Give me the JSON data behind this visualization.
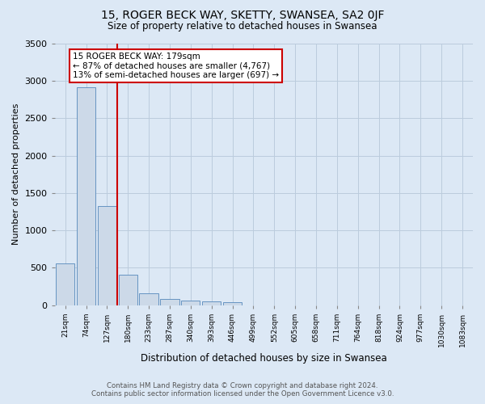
{
  "title": "15, ROGER BECK WAY, SKETTY, SWANSEA, SA2 0JF",
  "subtitle": "Size of property relative to detached houses in Swansea",
  "xlabel": "Distribution of detached houses by size in Swansea",
  "ylabel": "Number of detached properties",
  "footer_line1": "Contains HM Land Registry data © Crown copyright and database right 2024.",
  "footer_line2": "Contains public sector information licensed under the Open Government Licence v3.0.",
  "bar_color": "#ccd9e8",
  "bar_edge_color": "#5588bb",
  "grid_color": "#bbccdd",
  "background_color": "#dce8f5",
  "annotation_box_color": "#ffffff",
  "annotation_border_color": "#cc0000",
  "vline_color": "#cc0000",
  "categories": [
    "21sqm",
    "74sqm",
    "127sqm",
    "180sqm",
    "233sqm",
    "287sqm",
    "340sqm",
    "393sqm",
    "446sqm",
    "499sqm",
    "552sqm",
    "605sqm",
    "658sqm",
    "711sqm",
    "764sqm",
    "818sqm",
    "924sqm",
    "977sqm",
    "1030sqm",
    "1083sqm"
  ],
  "values": [
    560,
    2920,
    1330,
    410,
    160,
    80,
    55,
    45,
    40,
    0,
    0,
    0,
    0,
    0,
    0,
    0,
    0,
    0,
    0,
    0
  ],
  "property_label": "15 ROGER BECK WAY: 179sqm",
  "smaller_pct": "87%",
  "smaller_count": "4,767",
  "larger_pct": "13%",
  "larger_count": "697",
  "vline_index": 3,
  "ylim": [
    0,
    3500
  ],
  "yticks": [
    0,
    500,
    1000,
    1500,
    2000,
    2500,
    3000,
    3500
  ]
}
